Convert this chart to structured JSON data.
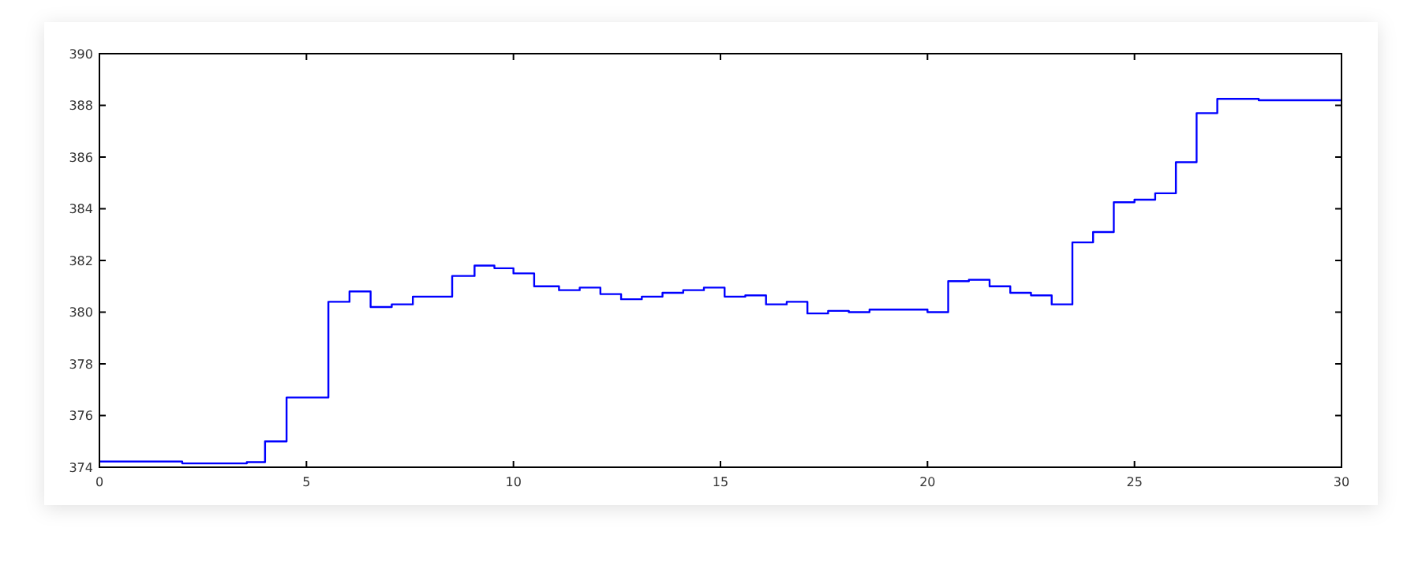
{
  "chart_data": {
    "type": "step",
    "x": [
      0,
      2.0,
      3.56,
      4.0,
      4.52,
      5.53,
      6.04,
      6.55,
      7.06,
      7.57,
      8.52,
      9.06,
      9.54,
      10.0,
      10.5,
      11.1,
      11.6,
      12.1,
      12.6,
      13.1,
      13.6,
      14.1,
      14.6,
      15.1,
      15.6,
      16.1,
      16.6,
      17.1,
      17.6,
      18.1,
      18.6,
      20.0,
      20.5,
      21.0,
      21.5,
      22.0,
      22.5,
      23.0,
      23.5,
      24.0,
      24.5,
      25.0,
      25.5,
      26.0,
      26.5,
      27.0,
      28.0,
      30
    ],
    "series": [
      {
        "color": "#0000ff",
        "values": [
          374.22,
          374.15,
          374.2,
          375.0,
          376.7,
          380.4,
          380.8,
          380.2,
          380.3,
          380.6,
          381.4,
          381.8,
          381.7,
          381.5,
          381.0,
          380.85,
          380.95,
          380.7,
          380.5,
          380.6,
          380.75,
          380.85,
          380.95,
          380.6,
          380.65,
          380.3,
          380.4,
          379.95,
          380.05,
          380.0,
          380.1,
          380.0,
          381.2,
          381.25,
          381.0,
          380.75,
          380.65,
          380.3,
          382.7,
          383.1,
          384.25,
          384.35,
          384.6,
          385.8,
          387.7,
          388.25,
          388.2,
          388.2
        ]
      }
    ],
    "xlim": [
      0,
      30
    ],
    "xticks": [
      0,
      5,
      10,
      15,
      20,
      25,
      30
    ],
    "ylim": [
      374,
      390
    ],
    "yticks": [
      374,
      376,
      378,
      380,
      382,
      384,
      386,
      388,
      390
    ],
    "grid": false,
    "marker": "none",
    "line_style": "solid"
  }
}
